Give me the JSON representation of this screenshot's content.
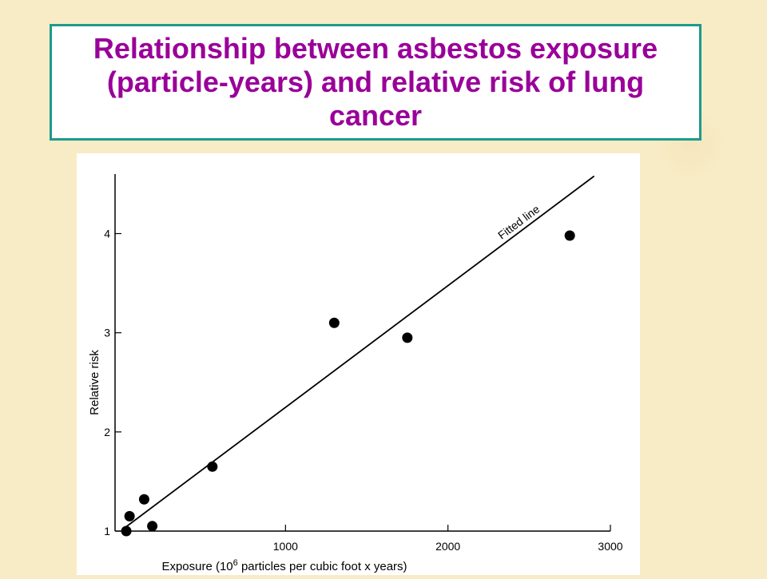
{
  "slide": {
    "title": "Relationship between asbestos exposure (particle-years) and relative risk of lung cancer"
  },
  "chart_data": {
    "type": "scatter",
    "title": "",
    "xlabel_pre": "Exposure (10",
    "xlabel_sup": "6",
    "xlabel_post": " particles per cubic foot x years)",
    "ylabel": "Relative risk",
    "xlim": [
      0,
      3000
    ],
    "ylim": [
      1,
      4.6
    ],
    "x_ticks": [
      {
        "value": 1000,
        "label": "1000"
      },
      {
        "value": 2000,
        "label": "2000"
      },
      {
        "value": 3000,
        "label": "3000"
      }
    ],
    "y_ticks": [
      {
        "value": 1,
        "label": "1"
      },
      {
        "value": 2,
        "label": "2"
      },
      {
        "value": 3,
        "label": "3"
      },
      {
        "value": 4,
        "label": "4"
      }
    ],
    "points": [
      {
        "x": 20,
        "y": 1.0
      },
      {
        "x": 40,
        "y": 1.15
      },
      {
        "x": 130,
        "y": 1.32
      },
      {
        "x": 180,
        "y": 1.05
      },
      {
        "x": 550,
        "y": 1.65
      },
      {
        "x": 1300,
        "y": 3.1
      },
      {
        "x": 1750,
        "y": 2.95
      },
      {
        "x": 2750,
        "y": 3.98
      }
    ],
    "fitted_line": {
      "label": "Fitted line",
      "x": [
        0,
        2900
      ],
      "y": [
        1.02,
        4.58
      ]
    },
    "grid": false,
    "legend": "none"
  },
  "colors": {
    "title_text": "#990099",
    "title_border": "#1d9a8c",
    "background": "#f8ecc6",
    "ink": "#000000"
  }
}
